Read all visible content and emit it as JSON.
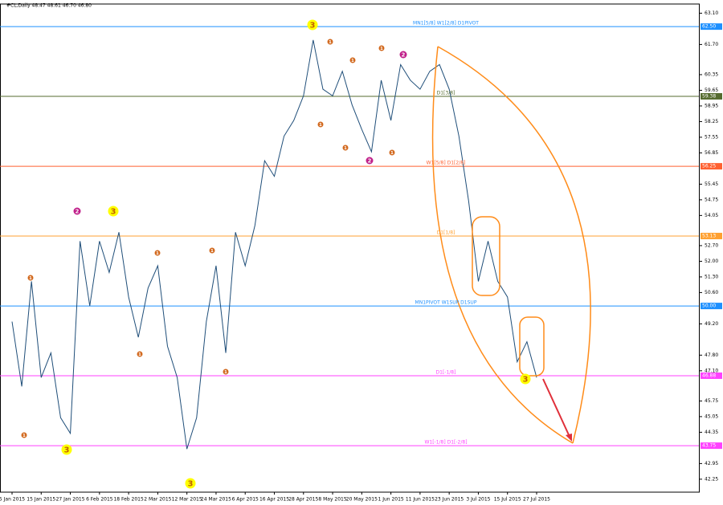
{
  "chart_data": {
    "type": "line",
    "title": "#CL,Daily 48.47 48.61 46.70 46.80",
    "categories": [
      "5 Jan 2015",
      null,
      null,
      "15 Jan 2015",
      null,
      null,
      "27 Jan 2015",
      null,
      null,
      "6 Feb 2015",
      null,
      null,
      "18 Feb 2015",
      null,
      null,
      "2 Mar 2015",
      null,
      null,
      "12 Mar 2015",
      null,
      null,
      "24 Mar 2015",
      null,
      null,
      "6 Apr 2015",
      null,
      null,
      "16 Apr 2015",
      null,
      null,
      "28 Apr 2015",
      null,
      null,
      "8 May 2015",
      null,
      null,
      "20 May 2015",
      null,
      null,
      "1 Jun 2015",
      null,
      null,
      "11 Jun 2015",
      null,
      null,
      "23 Jun 2015",
      null,
      null,
      "3 Jul 2015",
      null,
      null,
      "15 Jul 2015",
      null,
      null,
      "27 Jul 2015"
    ],
    "series": [
      {
        "name": "CL",
        "color": "#1f4e79",
        "values": [
          49.3,
          46.4,
          51.1,
          46.8,
          47.9,
          45.0,
          44.3,
          52.9,
          50.0,
          52.9,
          51.5,
          53.3,
          50.4,
          48.6,
          50.8,
          51.8,
          48.2,
          46.8,
          43.6,
          45.0,
          49.3,
          51.8,
          47.9,
          53.3,
          51.8,
          53.6,
          56.5,
          55.8,
          57.6,
          58.3,
          59.4,
          61.9,
          59.7,
          59.4,
          60.5,
          59.0,
          57.9,
          56.9,
          60.1,
          58.3,
          60.8,
          60.1,
          59.7,
          60.5,
          60.8,
          59.7,
          57.6,
          54.7,
          51.1,
          52.9,
          51.1,
          50.4,
          47.5,
          48.4,
          46.8
        ]
      }
    ],
    "ylim": [
      41.67,
      63.51
    ],
    "yticks": [
      {
        "value": 63.1,
        "label": "63.10"
      },
      {
        "value": 61.7,
        "label": "61.70"
      },
      60.35,
      59.65,
      58.95,
      58.25,
      57.55,
      56.85,
      55.45,
      54.75,
      54.05,
      {
        "value": 52.7,
        "label": "52.70"
      },
      {
        "value": 52.0,
        "label": "52.00"
      },
      {
        "value": 51.3,
        "label": "51.30"
      },
      {
        "value": 50.6,
        "label": "50.60"
      },
      {
        "value": 49.2,
        "label": "49.20"
      },
      {
        "value": 47.8,
        "label": "47.80"
      },
      {
        "value": 47.1,
        "label": "47.10"
      },
      45.75,
      45.05,
      44.35,
      42.95,
      42.25
    ],
    "grid": false,
    "levels": [
      {
        "value": 62.5,
        "value_label": "62.50",
        "text": "MN1[5/8] W1[2/8] D1PIVOT",
        "color": "#1e90ff"
      },
      {
        "value": 59.38,
        "value_label": "59.38",
        "text": "D1[3/8]",
        "color": "#556b2f"
      },
      {
        "value": 56.25,
        "value_label": "56.25",
        "text": "W1[5/8] D1[2/8]",
        "color": "#ff6030"
      },
      {
        "value": 53.13,
        "value_label": "53.13",
        "text": "D1[1/8]",
        "color": "#ffa030"
      },
      {
        "value": 50.0,
        "value_label": "50.00",
        "text": "MN1PIVOT W1SUP D1SUP",
        "color": "#1e90ff"
      },
      {
        "value": 46.88,
        "value_label": "46.88",
        "text": "D1[-1/8]",
        "color": "#ff40ff"
      },
      {
        "value": 43.75,
        "value_label": "43.75",
        "text": "W1[-1/8] D1[-2/8]",
        "color": "#ff40ff"
      }
    ],
    "annotations": [
      {
        "text": "3",
        "color": "#ffff00"
      },
      {
        "text": "3",
        "color": "#ffff00"
      },
      {
        "text": "3",
        "color": "#ffff00"
      },
      {
        "text": "3",
        "color": "#ffff00"
      },
      {
        "text": "3",
        "color": "#ffff00"
      },
      {
        "text": "2",
        "color": "#c0208a"
      },
      {
        "text": "2",
        "color": "#c0208a"
      },
      {
        "text": "2",
        "color": "#c0208a"
      },
      {
        "text": "1",
        "color": "#d2691e"
      },
      {
        "text": "1",
        "color": "#d2691e"
      },
      {
        "text": "1",
        "color": "#d2691e"
      },
      {
        "text": "1",
        "color": "#d2691e"
      },
      {
        "text": "1",
        "color": "#d2691e"
      },
      {
        "text": "1",
        "color": "#d2691e"
      },
      {
        "text": "1",
        "color": "#d2691e"
      },
      {
        "text": "1",
        "color": "#d2691e"
      },
      {
        "text": "1",
        "color": "#d2691e"
      },
      {
        "text": "1",
        "color": "#d2691e"
      },
      {
        "text": "1",
        "color": "#d2691e"
      },
      {
        "text": "1",
        "color": "#d2691e"
      }
    ]
  }
}
